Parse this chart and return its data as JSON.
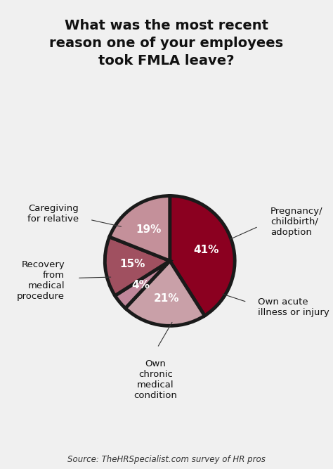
{
  "title": "What was the most recent\nreason one of your employees\ntook FMLA leave?",
  "source": "Source: TheHRSpecialist.com survey of HR pros",
  "slices": [
    41,
    21,
    4,
    15,
    19
  ],
  "colors": [
    "#8B0020",
    "#C9A0A8",
    "#C0869A",
    "#A05060",
    "#C4909A"
  ],
  "pct_labels": [
    "41%",
    "21%",
    "4%",
    "15%",
    "19%"
  ],
  "edge_color": "#1a1a1a",
  "edge_width": 3.5,
  "background_color": "#f0f0f0",
  "title_fontsize": 14,
  "pct_fontsize": 11,
  "label_fontsize": 9.5,
  "source_fontsize": 8.5,
  "startangle": 90
}
